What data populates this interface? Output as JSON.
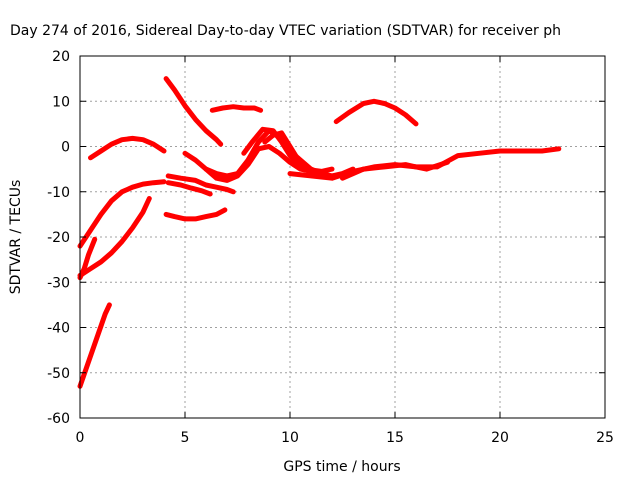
{
  "chart_data": {
    "type": "scatter",
    "title": "Day 274 of 2016, Sidereal Day-to-day VTEC variation (SDTVAR) for receiver ph",
    "xlabel": "GPS time / hours",
    "ylabel": "SDTVAR / TECUs",
    "xlim": [
      0,
      25
    ],
    "ylim": [
      -60,
      20
    ],
    "xticks": [
      0,
      5,
      10,
      15,
      20,
      25
    ],
    "yticks": [
      -60,
      -50,
      -40,
      -30,
      -20,
      -10,
      0,
      10,
      20
    ],
    "grid": true,
    "legend": "none",
    "color": "#ff0000",
    "series": [
      {
        "name": "arc-steep-low",
        "x": [
          0.0,
          0.3,
          0.6,
          0.9,
          1.2,
          1.4
        ],
        "y": [
          -53,
          -49,
          -45,
          -41,
          -37,
          -35
        ]
      },
      {
        "name": "arc-short-rise",
        "x": [
          0.0,
          0.2,
          0.4,
          0.7
        ],
        "y": [
          -29,
          -27,
          -24,
          -20.5
        ]
      },
      {
        "name": "arc-rise-to-dip",
        "x": [
          0.0,
          0.5,
          1.0,
          1.5,
          2.0,
          2.5,
          3.0,
          3.3
        ],
        "y": [
          -28.5,
          -27,
          -25.5,
          -23.5,
          -21,
          -18,
          -14.5,
          -11.5
        ]
      },
      {
        "name": "arc-rise-to-minus8",
        "x": [
          0.0,
          0.5,
          1.0,
          1.5,
          2.0,
          2.5,
          3.0,
          3.5,
          4.0
        ],
        "y": [
          -22,
          -18.5,
          -15,
          -12,
          -10,
          -9,
          -8.3,
          -8,
          -7.8
        ]
      },
      {
        "name": "arc-hump-near-zero",
        "x": [
          0.5,
          1.0,
          1.5,
          2.0,
          2.5,
          3.0,
          3.5,
          4.0
        ],
        "y": [
          -2.5,
          -1,
          0.5,
          1.5,
          1.8,
          1.5,
          0.5,
          -1
        ]
      },
      {
        "name": "arc-descending-high",
        "x": [
          4.1,
          4.5,
          5.0,
          5.5,
          6.0,
          6.5,
          6.7
        ],
        "y": [
          15,
          12.5,
          9,
          6,
          3.5,
          1.5,
          0.5
        ]
      },
      {
        "name": "arc-mid-minus7",
        "x": [
          4.2,
          4.8,
          5.5,
          6.0,
          6.5,
          7.0,
          7.3
        ],
        "y": [
          -6.5,
          -7,
          -7.5,
          -8.5,
          -9,
          -9.5,
          -10
        ]
      },
      {
        "name": "arc-mid-minus9",
        "x": [
          4.2,
          4.8,
          5.3,
          5.8,
          6.2
        ],
        "y": [
          -8,
          -8.5,
          -9.2,
          -9.8,
          -10.5
        ]
      },
      {
        "name": "arc-flat-minus15",
        "x": [
          4.1,
          4.5,
          5.0,
          5.5,
          6.0,
          6.5,
          6.9
        ],
        "y": [
          -15,
          -15.5,
          -16,
          -16,
          -15.5,
          -15,
          -14
        ]
      },
      {
        "name": "arc-plateau-8",
        "x": [
          6.3,
          6.8,
          7.3,
          7.8,
          8.3,
          8.6
        ],
        "y": [
          8,
          8.5,
          8.8,
          8.5,
          8.5,
          8
        ]
      },
      {
        "name": "arc-wave-1",
        "x": [
          5.0,
          5.5,
          6.0,
          6.5,
          7.0,
          7.5,
          8.0,
          8.5,
          9.0,
          9.5,
          10.0,
          10.5,
          11.0,
          11.5
        ],
        "y": [
          -1.5,
          -3,
          -5,
          -6,
          -6.5,
          -6,
          -3,
          1,
          3.5,
          2,
          -1,
          -3,
          -5,
          -6
        ]
      },
      {
        "name": "arc-wave-2",
        "x": [
          6.0,
          6.5,
          7.0,
          7.5,
          8.0,
          8.5,
          9.0,
          9.5,
          10.0,
          10.5,
          11.0,
          11.5,
          12.0,
          12.5,
          13.0
        ],
        "y": [
          -5,
          -7,
          -7.5,
          -6.5,
          -4,
          -0.5,
          0,
          -1.5,
          -3.5,
          -5,
          -5.5,
          -6,
          -6.5,
          -6,
          -5
        ]
      },
      {
        "name": "arc-wave-3",
        "x": [
          7.8,
          8.2,
          8.7,
          9.2,
          9.6,
          10.0,
          10.5,
          11.0,
          11.5,
          12.0
        ],
        "y": [
          -1.5,
          1,
          3.8,
          3.5,
          1,
          -2,
          -4.5,
          -5.2,
          -5.5,
          -5
        ]
      },
      {
        "name": "arc-rise-to-3",
        "x": [
          8.8,
          9.2,
          9.6,
          10.0,
          10.4,
          10.8
        ],
        "y": [
          1,
          2.5,
          3,
          0,
          -3,
          -4.5
        ]
      },
      {
        "name": "arc-long-tail",
        "x": [
          10.0,
          11.0,
          12.0,
          13.0,
          14.0,
          15.0,
          16.0,
          17.0,
          18.0,
          19.0,
          20.0,
          21.0,
          22.0,
          22.8
        ],
        "y": [
          -6,
          -6.5,
          -7,
          -5.5,
          -4.5,
          -4,
          -4.5,
          -4.5,
          -2,
          -1.5,
          -1,
          -1,
          -1,
          -0.5
        ]
      },
      {
        "name": "arc-lower-tail",
        "x": [
          12.5,
          13.5,
          14.5,
          15.5,
          16.0,
          16.5,
          17.5
        ],
        "y": [
          -7,
          -5,
          -4.5,
          -4,
          -4.5,
          -5,
          -3.5
        ]
      },
      {
        "name": "arc-hump-10",
        "x": [
          12.2,
          12.8,
          13.5,
          14.0,
          14.5,
          15.0,
          15.5,
          16.0
        ],
        "y": [
          5.5,
          7.5,
          9.5,
          10,
          9.5,
          8.5,
          7,
          5
        ]
      }
    ]
  }
}
